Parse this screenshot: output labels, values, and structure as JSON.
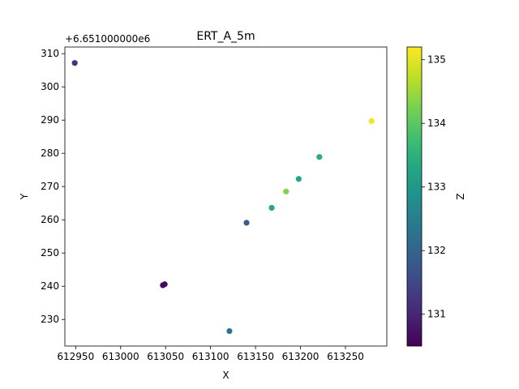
{
  "chart_data": {
    "type": "scatter",
    "title": "ERT_A_5m",
    "xlabel": "X",
    "ylabel": "Y",
    "y_offset_label": "+6.651000000e6",
    "xlim": [
      612938,
      613296
    ],
    "ylim": [
      222,
      312
    ],
    "x_ticks": [
      {
        "value": 612950,
        "label": "612950"
      },
      {
        "value": 613000,
        "label": "613000"
      },
      {
        "value": 613050,
        "label": "613050"
      },
      {
        "value": 613100,
        "label": "613100"
      },
      {
        "value": 613150,
        "label": "613150"
      },
      {
        "value": 613200,
        "label": "613200"
      },
      {
        "value": 613250,
        "label": "613250"
      }
    ],
    "y_ticks": [
      {
        "value": 230,
        "label": "230"
      },
      {
        "value": 240,
        "label": "240"
      },
      {
        "value": 250,
        "label": "250"
      },
      {
        "value": 260,
        "label": "260"
      },
      {
        "value": 270,
        "label": "270"
      },
      {
        "value": 280,
        "label": "280"
      },
      {
        "value": 290,
        "label": "290"
      },
      {
        "value": 300,
        "label": "300"
      },
      {
        "value": 310,
        "label": "310"
      }
    ],
    "points": [
      {
        "x": 612949,
        "y": 307.2,
        "z": 131.2
      },
      {
        "x": 613047,
        "y": 240.3,
        "z": 130.6
      },
      {
        "x": 613049,
        "y": 240.6,
        "z": 130.6
      },
      {
        "x": 613121,
        "y": 226.5,
        "z": 132.3
      },
      {
        "x": 613140,
        "y": 259.1,
        "z": 131.9
      },
      {
        "x": 613168,
        "y": 263.6,
        "z": 133.3
      },
      {
        "x": 613184,
        "y": 268.5,
        "z": 134.3
      },
      {
        "x": 613198,
        "y": 272.3,
        "z": 133.3
      },
      {
        "x": 613221,
        "y": 278.9,
        "z": 133.4
      },
      {
        "x": 613279,
        "y": 289.7,
        "z": 135.1
      }
    ],
    "colorbar": {
      "label": "Z",
      "range": [
        130.5,
        135.2
      ],
      "ticks": [
        {
          "value": 131,
          "label": "131"
        },
        {
          "value": 132,
          "label": "132"
        },
        {
          "value": 133,
          "label": "133"
        },
        {
          "value": 134,
          "label": "134"
        },
        {
          "value": 135,
          "label": "135"
        }
      ],
      "colormap": "viridis"
    },
    "grid": false
  }
}
